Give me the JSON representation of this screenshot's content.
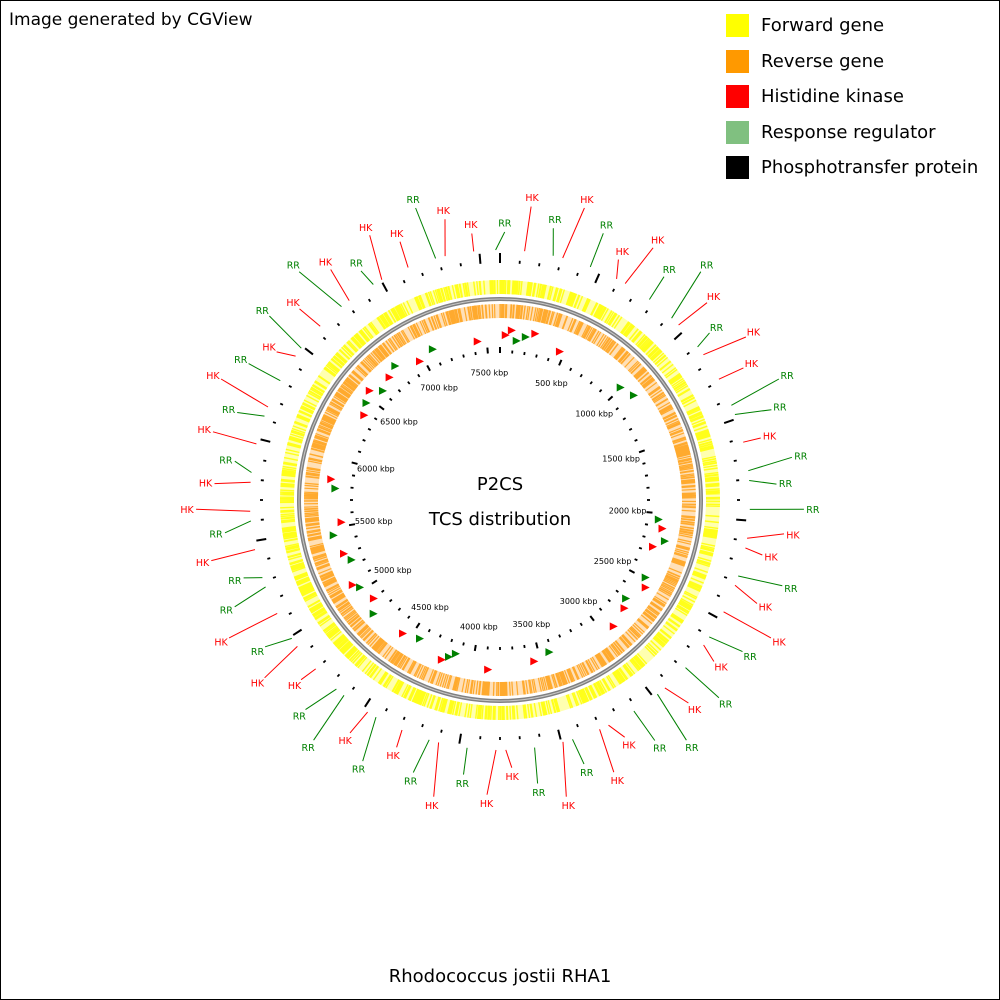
{
  "credit": "Image generated by CGView",
  "legend": [
    {
      "label": "Forward gene",
      "color": "#ffff00"
    },
    {
      "label": "Reverse gene",
      "color": "#ff9900"
    },
    {
      "label": "Histidine kinase",
      "color": "#ff0000"
    },
    {
      "label": "Response regulator",
      "color": "#80c080"
    },
    {
      "label": "Phosphotransfer protein",
      "color": "#000000"
    }
  ],
  "center": {
    "line1": "P2CS",
    "line2": "TCS distribution"
  },
  "organism": "Rhodococcus jostii RHA1",
  "colors": {
    "forward_track": "#ffff00",
    "reverse_track": "#ff9900",
    "backbone": "#808080",
    "hk": "#ff0000",
    "rr": "#008000"
  },
  "tick_labels": [
    "500 kbp",
    "1000 kbp",
    "1500 kbp",
    "2000 kbp",
    "2500 kbp",
    "3000 kbp",
    "3500 kbp",
    "4000 kbp",
    "4500 kbp",
    "5000 kbp",
    "5500 kbp",
    "6000 kbp",
    "6500 kbp",
    "7000 kbp",
    "7500 kbp"
  ],
  "features": [
    {
      "label": "RR",
      "type": "rr"
    },
    {
      "label": "HK",
      "type": "hk"
    },
    {
      "label": "RR",
      "type": "rr"
    },
    {
      "label": "HK",
      "type": "hk"
    },
    {
      "label": "RR",
      "type": "rr"
    },
    {
      "label": "HK",
      "type": "hk"
    },
    {
      "label": "HK",
      "type": "hk"
    },
    {
      "label": "RR",
      "type": "rr"
    },
    {
      "label": "RR",
      "type": "rr"
    },
    {
      "label": "HK",
      "type": "hk"
    },
    {
      "label": "RR",
      "type": "rr"
    },
    {
      "label": "HK",
      "type": "hk"
    },
    {
      "label": "HK",
      "type": "hk"
    },
    {
      "label": "RR",
      "type": "rr"
    },
    {
      "label": "RR",
      "type": "rr"
    },
    {
      "label": "HK",
      "type": "hk"
    },
    {
      "label": "RR",
      "type": "rr"
    },
    {
      "label": "RR",
      "type": "rr"
    },
    {
      "label": "RR",
      "type": "rr"
    },
    {
      "label": "HK",
      "type": "hk"
    },
    {
      "label": "HK",
      "type": "hk"
    },
    {
      "label": "RR",
      "type": "rr"
    },
    {
      "label": "HK",
      "type": "hk"
    },
    {
      "label": "HK",
      "type": "hk"
    },
    {
      "label": "RR",
      "type": "rr"
    },
    {
      "label": "HK",
      "type": "hk"
    },
    {
      "label": "RR",
      "type": "rr"
    },
    {
      "label": "HK",
      "type": "hk"
    },
    {
      "label": "RR",
      "type": "rr"
    },
    {
      "label": "RR",
      "type": "rr"
    },
    {
      "label": "HK",
      "type": "hk"
    },
    {
      "label": "HK",
      "type": "hk"
    },
    {
      "label": "RR",
      "type": "rr"
    },
    {
      "label": "HK",
      "type": "hk"
    },
    {
      "label": "RR",
      "type": "rr"
    },
    {
      "label": "HK",
      "type": "hk"
    },
    {
      "label": "HK",
      "type": "hk"
    },
    {
      "label": "RR",
      "type": "rr"
    },
    {
      "label": "HK",
      "type": "hk"
    },
    {
      "label": "RR",
      "type": "rr"
    },
    {
      "label": "HK",
      "type": "hk"
    },
    {
      "label": "RR",
      "type": "rr"
    },
    {
      "label": "HK",
      "type": "hk"
    },
    {
      "label": "RR",
      "type": "rr"
    },
    {
      "label": "RR",
      "type": "rr"
    },
    {
      "label": "HK",
      "type": "hk"
    },
    {
      "label": "HK",
      "type": "hk"
    },
    {
      "label": "RR",
      "type": "rr"
    },
    {
      "label": "HK",
      "type": "hk"
    },
    {
      "label": "RR",
      "type": "rr"
    },
    {
      "label": "RR",
      "type": "rr"
    },
    {
      "label": "HK",
      "type": "hk"
    },
    {
      "label": "RR",
      "type": "rr"
    },
    {
      "label": "HK",
      "type": "hk"
    },
    {
      "label": "HK",
      "type": "hk"
    },
    {
      "label": "RR",
      "type": "rr"
    },
    {
      "label": "HK",
      "type": "hk"
    },
    {
      "label": "RR",
      "type": "rr"
    },
    {
      "label": "HK",
      "type": "hk"
    },
    {
      "label": "RR",
      "type": "rr"
    },
    {
      "label": "HK",
      "type": "hk"
    },
    {
      "label": "RR",
      "type": "rr"
    },
    {
      "label": "HK",
      "type": "hk"
    },
    {
      "label": "RR",
      "type": "rr"
    },
    {
      "label": "HK",
      "type": "hk"
    },
    {
      "label": "RR",
      "type": "rr"
    },
    {
      "label": "HK",
      "type": "hk"
    },
    {
      "label": "HK",
      "type": "hk"
    },
    {
      "label": "RR",
      "type": "rr"
    },
    {
      "label": "HK",
      "type": "hk"
    },
    {
      "label": "HK",
      "type": "hk"
    }
  ]
}
